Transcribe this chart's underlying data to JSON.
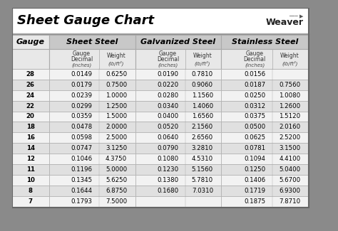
{
  "title": "Sheet Gauge Chart",
  "bg_outer": "#8a8a8a",
  "bg_white": "#ffffff",
  "bg_title": "#ffffff",
  "bg_header1": "#c8c8c8",
  "bg_header2": "#e8e8e8",
  "row_colors": [
    "#f2f2f2",
    "#e0e0e0"
  ],
  "border_color": "#888888",
  "line_color": "#aaaaaa",
  "gauges": [
    28,
    26,
    24,
    22,
    20,
    18,
    16,
    14,
    12,
    11,
    10,
    8,
    7
  ],
  "sheet_steel_decimal": [
    "0.0149",
    "0.0179",
    "0.0239",
    "0.0299",
    "0.0359",
    "0.0478",
    "0.0598",
    "0.0747",
    "0.1046",
    "0.1196",
    "0.1345",
    "0.1644",
    "0.1793"
  ],
  "sheet_steel_weight": [
    "0.6250",
    "0.7500",
    "1.0000",
    "1.2500",
    "1.5000",
    "2.0000",
    "2.5000",
    "3.1250",
    "4.3750",
    "5.0000",
    "5.6250",
    "6.8750",
    "7.5000"
  ],
  "galv_decimal": [
    "0.0190",
    "0.0220",
    "0.0280",
    "0.0340",
    "0.0400",
    "0.0520",
    "0.0640",
    "0.0790",
    "0.1080",
    "0.1230",
    "0.1380",
    "0.1680",
    ""
  ],
  "galv_weight": [
    "0.7810",
    "0.9060",
    "1.1560",
    "1.4060",
    "1.6560",
    "2.1560",
    "2.6560",
    "3.2810",
    "4.5310",
    "5.1560",
    "5.7810",
    "7.0310",
    ""
  ],
  "stain_decimal": [
    "0.0156",
    "0.0187",
    "0.0250",
    "0.0312",
    "0.0375",
    "0.0500",
    "0.0625",
    "0.0781",
    "0.1094",
    "0.1250",
    "0.1406",
    "0.1719",
    "0.1875"
  ],
  "stain_weight": [
    "",
    "0.7560",
    "1.0080",
    "1.2600",
    "1.5120",
    "2.0160",
    "2.5200",
    "3.1500",
    "4.4100",
    "5.0400",
    "5.6700",
    "6.9300",
    "7.8710"
  ],
  "fig_w": 4.74,
  "fig_h": 3.25,
  "dpi": 100
}
